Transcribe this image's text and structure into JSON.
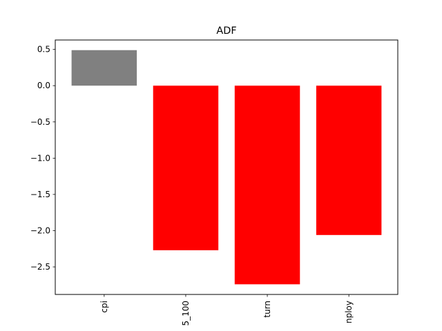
{
  "chart_data": {
    "type": "bar",
    "title": "ADF",
    "xlabel": "",
    "ylabel": "",
    "categories": [
      "cpi",
      "5_100",
      "turn",
      "nploy"
    ],
    "values": [
      0.49,
      -2.27,
      -2.74,
      -2.06
    ],
    "bar_colors": [
      "#808080",
      "#ff0000",
      "#ff0000",
      "#ff0000"
    ],
    "ylim": [
      -2.88,
      0.63
    ],
    "yticks": [
      0.5,
      0.0,
      -0.5,
      -1.0,
      -1.5,
      -2.0,
      -2.5
    ],
    "ytick_labels": [
      "0.5",
      "0.0",
      "−0.5",
      "−1.0",
      "−1.5",
      "−2.0",
      "−2.5"
    ],
    "grid": false,
    "legend": "none"
  }
}
